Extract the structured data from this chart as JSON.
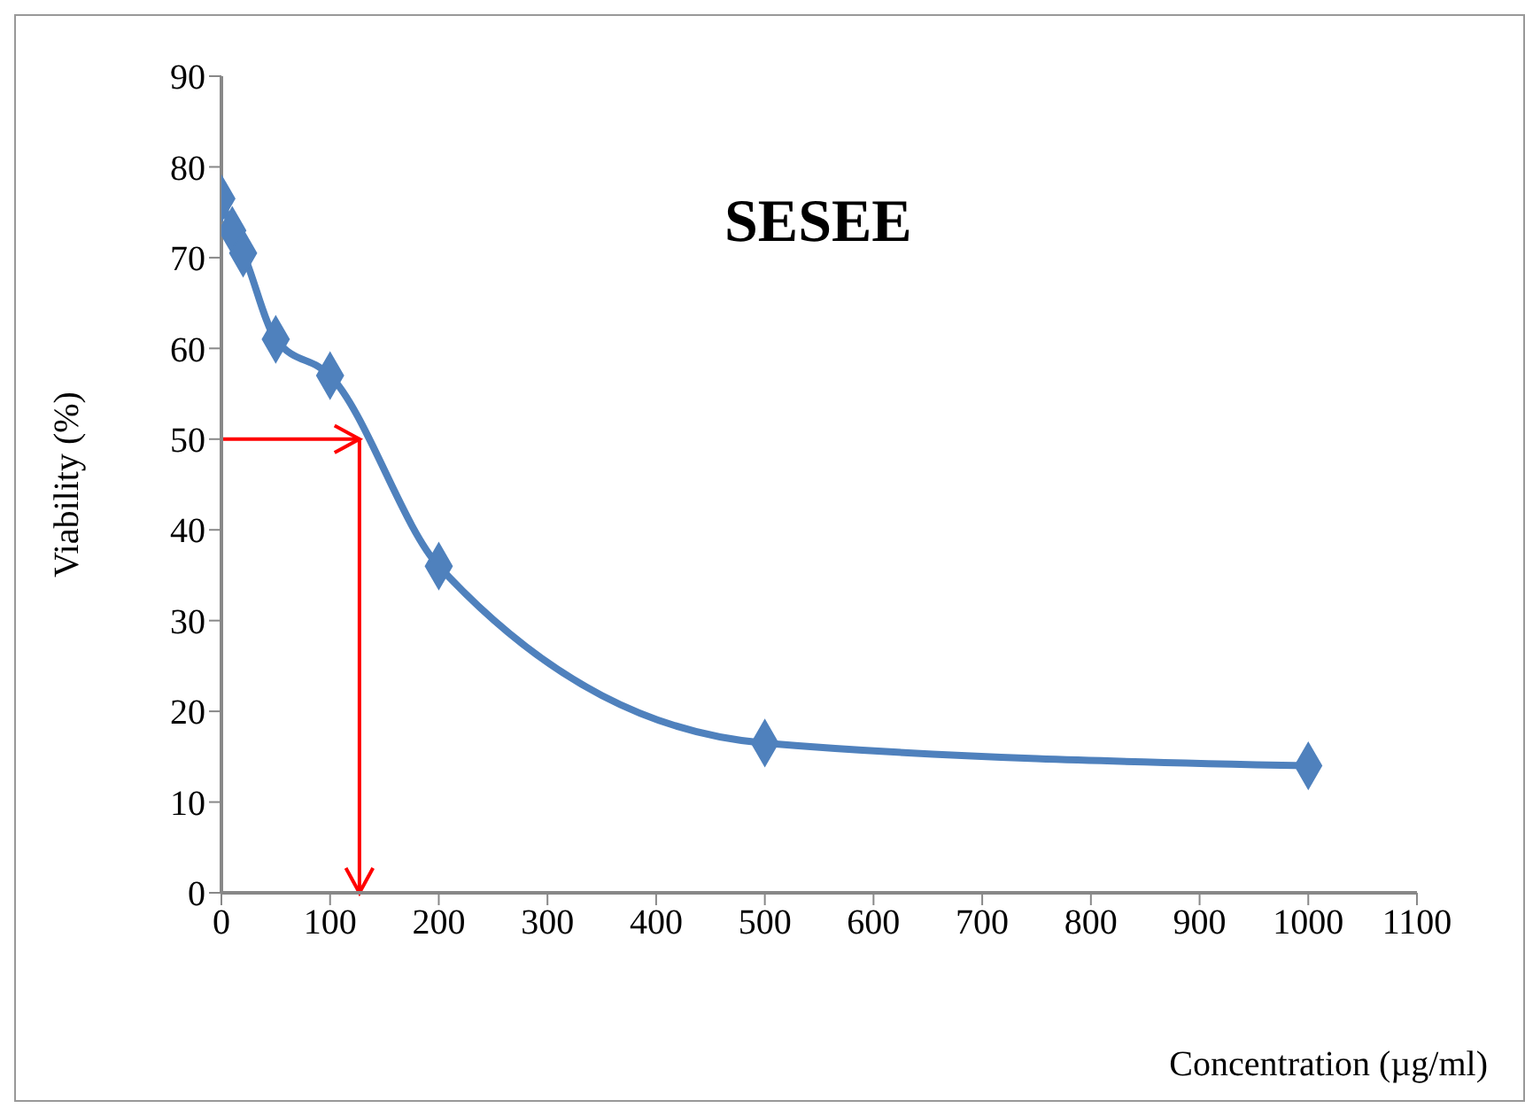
{
  "chart_data": {
    "type": "line",
    "title": "SESEE",
    "xlabel": "Concentration (µg/ml)",
    "ylabel": "Viability (%)",
    "x": [
      0,
      10,
      20,
      50,
      100,
      200,
      500,
      1000
    ],
    "series": [
      {
        "color": "#4f81bd",
        "values": [
          76.5,
          73,
          70.5,
          61,
          57,
          36,
          16.5,
          14
        ]
      }
    ],
    "xlim": [
      0,
      1100
    ],
    "xticks": [
      0,
      100,
      200,
      300,
      400,
      500,
      600,
      700,
      800,
      900,
      1000,
      1100
    ],
    "ylim": [
      0,
      90
    ],
    "yticks": [
      0,
      10,
      20,
      30,
      40,
      50,
      60,
      70,
      80,
      90
    ],
    "ref_lines": [
      {
        "axis": "y",
        "value": 50,
        "color": "#ff0000"
      },
      {
        "axis": "x",
        "value": 127,
        "color": "#ff0000"
      }
    ],
    "grid": false,
    "legend": false,
    "marker": "diamond",
    "line_style": "solid"
  }
}
